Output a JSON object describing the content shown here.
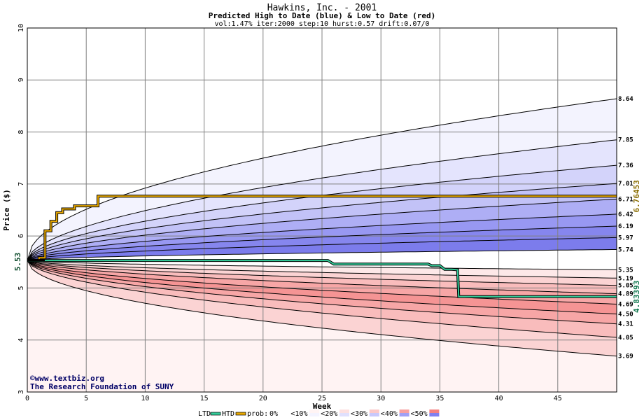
{
  "chart_data": {
    "type": "area",
    "title": "Hawkins, Inc. - 2001",
    "subtitle": "Predicted High to Date (blue) &  Low to Date (red)",
    "params": "vol:1.47% iter:2000 step:10 hurst:0.57 drift:0.07/0",
    "xlabel": "Week",
    "ylabel": "Price ($)",
    "xlim": [
      0,
      50
    ],
    "ylim": [
      3,
      10
    ],
    "x_ticks": [
      0,
      5,
      10,
      15,
      20,
      25,
      30,
      35,
      40,
      45
    ],
    "y_ticks": [
      3,
      4,
      5,
      6,
      7,
      8,
      9,
      10
    ],
    "grid": true,
    "start_price": 5.53,
    "start_label": "5.53",
    "high_percentile_curves": [
      {
        "end": 8.64,
        "label": "8.64",
        "outer": true
      },
      {
        "end": 7.85,
        "label": "7.85"
      },
      {
        "end": 7.36,
        "label": "7.36"
      },
      {
        "end": 7.01,
        "label": "7.01"
      },
      {
        "end": 6.71,
        "label": "6.71"
      },
      {
        "end": 6.42,
        "label": "6.42"
      },
      {
        "end": 6.19,
        "label": "6.19"
      },
      {
        "end": 5.97,
        "label": "5.97"
      },
      {
        "end": 5.74,
        "label": "5.74"
      }
    ],
    "low_percentile_curves": [
      {
        "end": 5.35,
        "label": "5.35"
      },
      {
        "end": 5.19,
        "label": "5.19"
      },
      {
        "end": 5.05,
        "label": "5.05"
      },
      {
        "end": 4.89,
        "label": "4.89"
      },
      {
        "end": 4.69,
        "label": "4.69"
      },
      {
        "end": 4.5,
        "label": "4.50"
      },
      {
        "end": 4.31,
        "label": "4.31"
      },
      {
        "end": 4.05,
        "label": "4.05"
      },
      {
        "end": 3.69,
        "label": "3.69",
        "outer": true
      }
    ],
    "htd_series": {
      "name": "HTD",
      "x": [
        0,
        1,
        1,
        1.5,
        1.5,
        2,
        2,
        2.5,
        2.5,
        3,
        3,
        4,
        4,
        6,
        6,
        50
      ],
      "y": [
        5.53,
        5.53,
        5.58,
        5.58,
        6.1,
        6.1,
        6.28,
        6.28,
        6.45,
        6.45,
        6.52,
        6.52,
        6.58,
        6.58,
        6.765,
        6.765
      ],
      "end_label": "6.76453",
      "color": "#e8a800"
    },
    "ltd_series": {
      "name": "LTD",
      "x": [
        0,
        25.5,
        26,
        34,
        34.3,
        35,
        35.4,
        36,
        36.5,
        36.6,
        50
      ],
      "y": [
        5.53,
        5.53,
        5.46,
        5.46,
        5.43,
        5.43,
        5.36,
        5.36,
        5.35,
        4.834,
        4.834
      ],
      "end_label": "4.83393",
      "color": "#33cc99"
    },
    "band_colors": {
      "high": [
        "#fafaff",
        "#ececfe",
        "#dadafb",
        "#c5c5f7",
        "#a8a8f4",
        "#8b8bf0"
      ],
      "low": [
        "#fff6f6",
        "#fee4e4",
        "#fdcdcd",
        "#fbb5b5",
        "#f79a9a",
        "#f48888"
      ]
    },
    "legend": {
      "ltd": "LTD",
      "htd": "HTD",
      "prob_prefix": "prob:",
      "prob_entries": [
        "0%",
        "<10%",
        "<20%",
        "<30%",
        "<40%",
        "<50%"
      ]
    },
    "credit": [
      "©www.textbiz.org",
      "The Research Foundation of SUNY"
    ]
  }
}
